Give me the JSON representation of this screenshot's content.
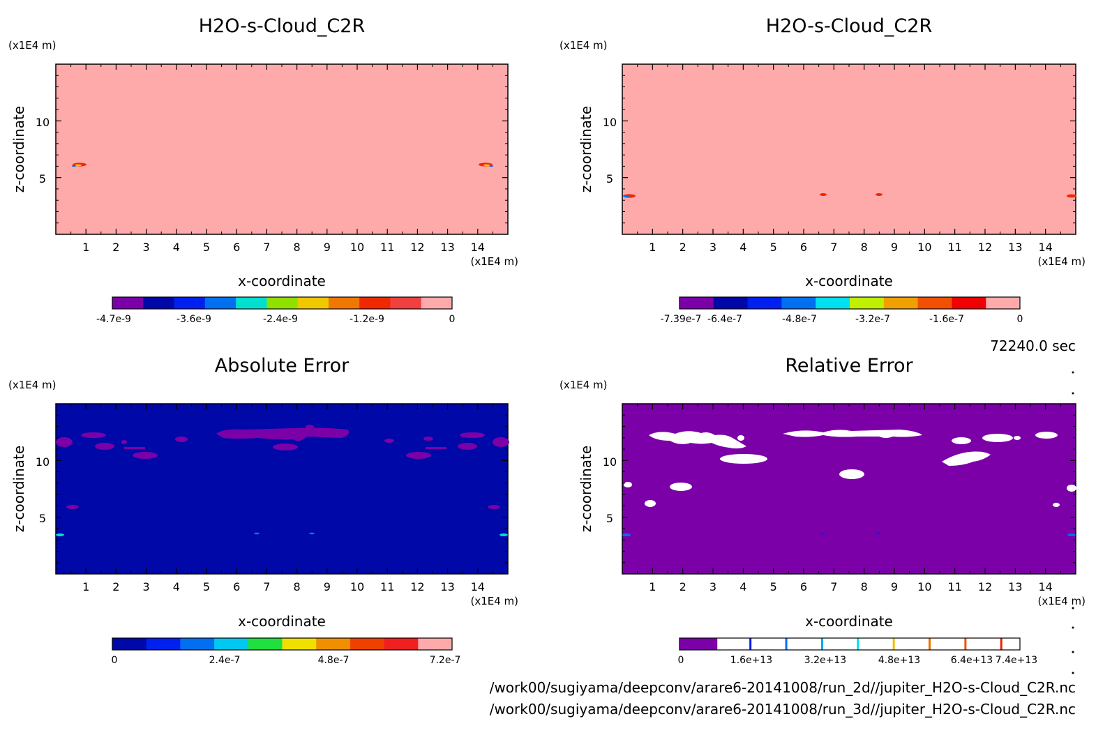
{
  "panels": [
    {
      "id": "top-left",
      "title": "H2O-s-Cloud_C2R",
      "xlabel": "x-coordinate",
      "ylabel": "z-coordinate",
      "x_unit": "(x1E4 m)",
      "y_unit": "(x1E4 m)",
      "x_ticks": [
        "1",
        "2",
        "3",
        "4",
        "5",
        "6",
        "7",
        "8",
        "9",
        "10",
        "11",
        "12",
        "13",
        "14"
      ],
      "y_ticks": [
        "5",
        "10"
      ],
      "background_color": "#FFAAAA",
      "colorbar": {
        "colors": [
          "#7B00A8",
          "#0008A8",
          "#0020F0",
          "#0070F0",
          "#00E0D0",
          "#90E000",
          "#F0C800",
          "#F07800",
          "#F02800",
          "#F04040",
          "#FFAAAA"
        ],
        "ticks": [
          "-4.7e-9",
          "-3.6e-9",
          "-2.4e-9",
          "-1.2e-9",
          "0"
        ]
      }
    },
    {
      "id": "top-right",
      "title": "H2O-s-Cloud_C2R",
      "xlabel": "x-coordinate",
      "ylabel": "z-coordinate",
      "x_unit": "(x1E4 m)",
      "y_unit": "(x1E4 m)",
      "x_ticks": [
        "1",
        "2",
        "3",
        "4",
        "5",
        "6",
        "7",
        "8",
        "9",
        "10",
        "11",
        "12",
        "13",
        "14"
      ],
      "y_ticks": [
        "5",
        "10"
      ],
      "background_color": "#FFAAAA",
      "colorbar": {
        "colors": [
          "#7B00A8",
          "#0008A8",
          "#0020F0",
          "#0070F0",
          "#00E0F0",
          "#C0F000",
          "#F0A000",
          "#F05000",
          "#F00000",
          "#FFAAAA"
        ],
        "ticks": [
          "-7.39e-7",
          "-6.4e-7",
          "-4.8e-7",
          "-3.2e-7",
          "-1.6e-7",
          "0"
        ]
      }
    },
    {
      "id": "bottom-left",
      "title": "Absolute Error",
      "xlabel": "x-coordinate",
      "ylabel": "z-coordinate",
      "x_unit": "(x1E4 m)",
      "y_unit": "(x1E4 m)",
      "x_ticks": [
        "1",
        "2",
        "3",
        "4",
        "5",
        "6",
        "7",
        "8",
        "9",
        "10",
        "11",
        "12",
        "13",
        "14"
      ],
      "y_ticks": [
        "5",
        "10"
      ],
      "background_color": "#0008A8",
      "colorbar": {
        "colors": [
          "#0008A8",
          "#0020F0",
          "#0070F0",
          "#00C8F0",
          "#20E040",
          "#F0E000",
          "#F09000",
          "#F04000",
          "#F02020",
          "#FFAAAA"
        ],
        "ticks": [
          "0",
          "2.4e-7",
          "4.8e-7",
          "7.2e-7"
        ]
      }
    },
    {
      "id": "bottom-right",
      "title": "Relative Error",
      "xlabel": "x-coordinate",
      "ylabel": "z-coordinate",
      "x_unit": "(x1E4 m)",
      "y_unit": "(x1E4 m)",
      "x_ticks": [
        "1",
        "2",
        "3",
        "4",
        "5",
        "6",
        "7",
        "8",
        "9",
        "10",
        "11",
        "12",
        "13",
        "14"
      ],
      "y_ticks": [
        "5",
        "10"
      ],
      "background_color": "#7B00A8",
      "colorbar": {
        "colors": [
          "#7B00A8",
          "#FFFFFF",
          "#FFFFFF",
          "#FFFFFF",
          "#FFFFFF",
          "#FFFFFF",
          "#FFFFFF",
          "#FFFFFF",
          "#FFFFFF"
        ],
        "stripe_colors": [
          "#0020F0",
          "#0070F0",
          "#00A8F0",
          "#00E0F0",
          "#F0C000",
          "#F07000",
          "#F05000",
          "#F02000"
        ],
        "ticks": [
          "0",
          "1.6e+13",
          "3.2e+13",
          "4.8e+13",
          "6.4e+13",
          "7.4e+13"
        ]
      }
    }
  ],
  "time_label": "72240.0 sec",
  "footer": {
    "line1": "/work00/sugiyama/deepconv/arare6-20141008/run_2d//jupiter_H2O-s-Cloud_C2R.nc",
    "line2": "/work00/sugiyama/deepconv/arare6-20141008/run_3d//jupiter_H2O-s-Cloud_C2R.nc"
  },
  "chart_data": [
    {
      "type": "heatmap",
      "title": "H2O-s-Cloud_C2R",
      "xlabel": "x-coordinate",
      "ylabel": "z-coordinate",
      "xlim": [
        0,
        15
      ],
      "ylim": [
        0,
        15
      ],
      "colorbar_range": [
        -4.7e-09,
        0
      ]
    },
    {
      "type": "heatmap",
      "title": "H2O-s-Cloud_C2R",
      "xlabel": "x-coordinate",
      "ylabel": "z-coordinate",
      "xlim": [
        0,
        15
      ],
      "ylim": [
        0,
        15
      ],
      "colorbar_range": [
        -7.39e-07,
        0
      ]
    },
    {
      "type": "heatmap",
      "title": "Absolute Error",
      "xlabel": "x-coordinate",
      "ylabel": "z-coordinate",
      "xlim": [
        0,
        15
      ],
      "ylim": [
        0,
        15
      ],
      "colorbar_range": [
        0,
        7.2e-07
      ]
    },
    {
      "type": "heatmap",
      "title": "Relative Error",
      "xlabel": "x-coordinate",
      "ylabel": "z-coordinate",
      "xlim": [
        0,
        15
      ],
      "ylim": [
        0,
        15
      ],
      "colorbar_range": [
        0,
        74000000000000.0
      ]
    }
  ]
}
